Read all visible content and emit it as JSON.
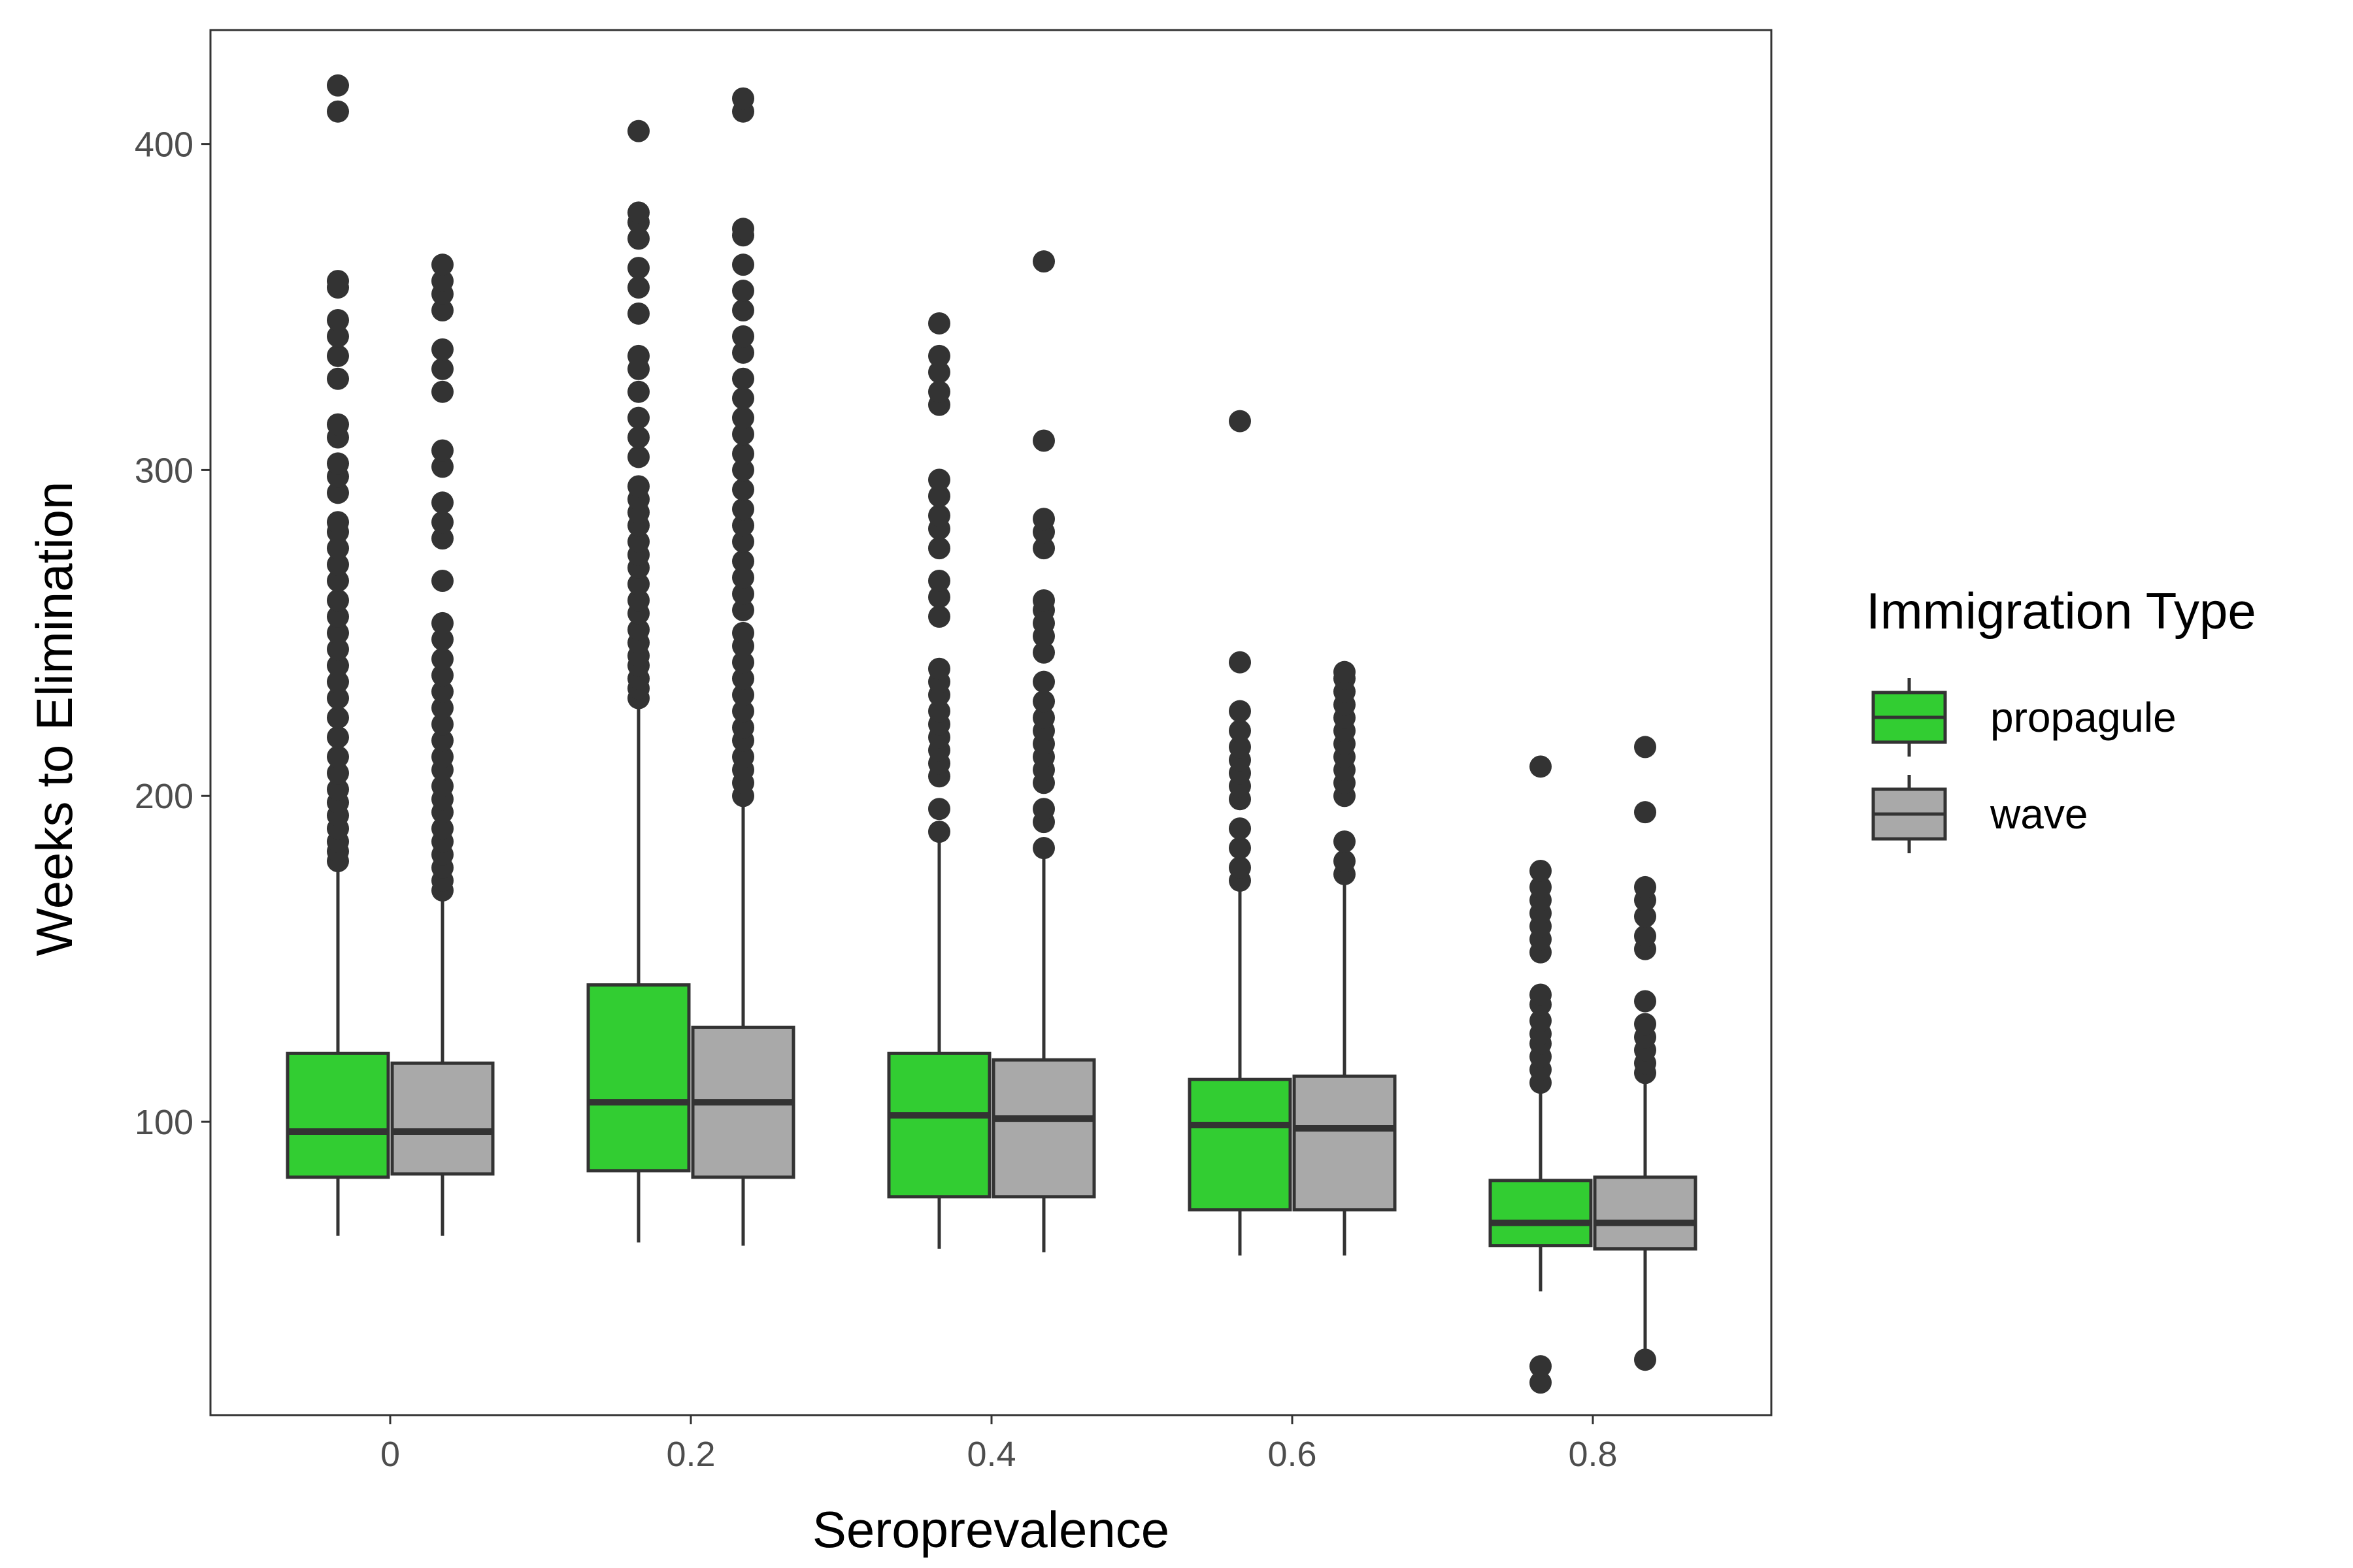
{
  "chart_data": {
    "type": "boxplot",
    "xlabel": "Seroprevalence",
    "ylabel": "Weeks to Elimination",
    "categories": [
      "0",
      "0.2",
      "0.4",
      "0.6",
      "0.8"
    ],
    "ylim": [
      10,
      435
    ],
    "yticks": [
      100,
      200,
      300,
      400
    ],
    "grid": false,
    "legend": {
      "title": "Immigration Type",
      "placement": "right"
    },
    "colors": {
      "propagule": "#32cd32",
      "wave": "#a9a9a9",
      "outline": "#333333",
      "axis": "#333333",
      "panel_border": "#333333"
    },
    "series": [
      {
        "name": "propagule",
        "boxes": [
          {
            "min": 65,
            "q1": 83,
            "median": 97,
            "q3": 121,
            "max": 179,
            "outliers": [
              180,
              183,
              186,
              190,
              194,
              198,
              202,
              207,
              212,
              218,
              224,
              230,
              235,
              240,
              245,
              250,
              255,
              260,
              266,
              271,
              276,
              281,
              284,
              293,
              298,
              302,
              310,
              314,
              328,
              335,
              341,
              346,
              356,
              358,
              410,
              418
            ]
          },
          {
            "min": 63,
            "q1": 85,
            "median": 106,
            "q3": 142,
            "max": 229,
            "outliers": [
              230,
              233,
              236,
              240,
              243,
              247,
              251,
              256,
              260,
              265,
              270,
              274,
              278,
              283,
              287,
              291,
              295,
              304,
              310,
              316,
              324,
              331,
              335,
              348,
              356,
              362,
              371,
              376,
              379,
              404
            ]
          },
          {
            "min": 61,
            "q1": 77,
            "median": 102,
            "q3": 121,
            "max": 187,
            "outliers": [
              189,
              196,
              206,
              210,
              214,
              218,
              222,
              226,
              231,
              235,
              239,
              255,
              261,
              266,
              276,
              282,
              286,
              292,
              297,
              320,
              324,
              330,
              335,
              345
            ]
          },
          {
            "min": 59,
            "q1": 73,
            "median": 99,
            "q3": 113,
            "max": 172,
            "outliers": [
              174,
              178,
              184,
              190,
              199,
              203,
              207,
              211,
              215,
              220,
              226,
              241,
              315
            ]
          },
          {
            "min": 48,
            "q1": 62,
            "median": 69,
            "q3": 82,
            "max": 109,
            "outliers": [
              20,
              25,
              112,
              116,
              120,
              124,
              127,
              131,
              136,
              139,
              152,
              156,
              160,
              164,
              168,
              172,
              177,
              209
            ]
          }
        ]
      },
      {
        "name": "wave",
        "boxes": [
          {
            "min": 65,
            "q1": 84,
            "median": 97,
            "q3": 118,
            "max": 169,
            "outliers": [
              171,
              174,
              178,
              182,
              186,
              190,
              195,
              199,
              203,
              208,
              212,
              217,
              222,
              227,
              232,
              237,
              242,
              248,
              253,
              266,
              279,
              284,
              290,
              301,
              306,
              324,
              331,
              337,
              349,
              354,
              358,
              363
            ]
          },
          {
            "min": 62,
            "q1": 83,
            "median": 106,
            "q3": 129,
            "max": 198,
            "outliers": [
              200,
              204,
              208,
              212,
              217,
              221,
              226,
              231,
              236,
              241,
              246,
              250,
              257,
              262,
              267,
              272,
              278,
              283,
              288,
              294,
              300,
              305,
              311,
              316,
              322,
              328,
              336,
              341,
              349,
              355,
              363,
              372,
              374,
              410,
              414
            ]
          },
          {
            "min": 60,
            "q1": 77,
            "median": 101,
            "q3": 119,
            "max": 182,
            "outliers": [
              184,
              192,
              196,
              204,
              208,
              212,
              216,
              220,
              224,
              229,
              235,
              244,
              249,
              253,
              257,
              260,
              276,
              281,
              285,
              309,
              364
            ]
          },
          {
            "min": 59,
            "q1": 73,
            "median": 98,
            "q3": 114,
            "max": 174,
            "outliers": [
              176,
              180,
              186,
              200,
              204,
              208,
              212,
              216,
              220,
              224,
              228,
              232,
              236,
              238
            ]
          },
          {
            "min": 28,
            "q1": 61,
            "median": 69,
            "q3": 83,
            "max": 113,
            "outliers": [
              27,
              115,
              118,
              122,
              126,
              130,
              137,
              153,
              157,
              163,
              168,
              172,
              195,
              215
            ]
          }
        ]
      }
    ]
  }
}
